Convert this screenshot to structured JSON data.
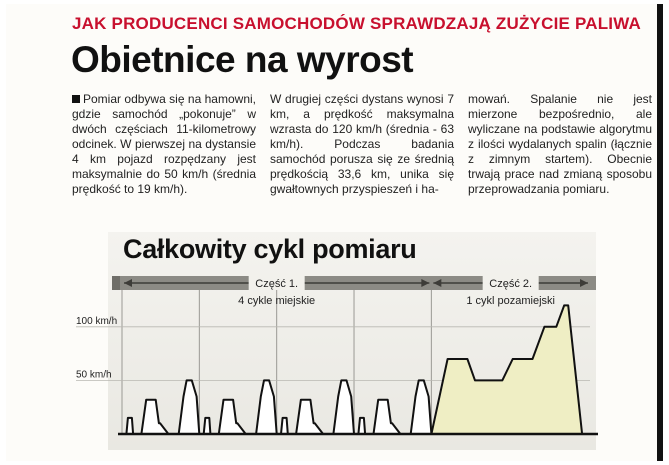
{
  "article": {
    "kicker": "JAK PRODUCENCI SAMOCHODÓW SPRAWDZAJĄ ZUŻYCIE PALIWA",
    "headline": "Obietnice na wyrost",
    "body_col1": "Pomiar odbywa się na hamowni, gdzie samochód „pokonuje” w dwóch częściach 11-kilometrowy odcinek. W pierwszej na dystansie 4 km pojazd rozpędzany jest maksymalnie do 50 km/h (średnia prędkość to 19 km/h).",
    "body_col2": "W drugiej części dystans wynosi 7 km, a prędkość maksymalna wzrasta do 120 km/h (średnia - 63 km/h). Podczas badania samochód porusza się ze średnią prędkością 33,6 km, unika się gwałtownych przyspieszeń i ha-",
    "body_col3": "mowań. Spalanie nie jest mierzone bezpośrednio, ale wyliczane na podstawie algorytmu z ilości wydalanych spalin (łącznie z zimnym startem). Obecnie trwają prace nad zmianą sposobu przeprowadzania pomiaru."
  },
  "chart_data": {
    "type": "area",
    "title": "Całkowity cykl pomiaru",
    "x_unit": "s",
    "y_unit": "km/h",
    "ytick_labels": [
      "100 km/h",
      "50 km/h"
    ],
    "ylim": [
      0,
      125
    ],
    "xlim": [
      0,
      1180
    ],
    "grid": "vertical lines separating the four urban cycles",
    "fill_colors": {
      "part1": "#ffffff",
      "part2": "#efeec4"
    },
    "parts": [
      {
        "label": "Część 1.",
        "sublabel": "4 cykle miejskie",
        "x_range": [
          0,
          780
        ]
      },
      {
        "label": "Część 2.",
        "sublabel": "1 cykl pozamiejski",
        "x_range": [
          780,
          1180
        ]
      }
    ],
    "series": [
      {
        "values_part1_one_cycle": [
          [
            0,
            0
          ],
          [
            11,
            0
          ],
          [
            15,
            15
          ],
          [
            23,
            15
          ],
          [
            25,
            15
          ],
          [
            28,
            0
          ],
          [
            49,
            0
          ],
          [
            61,
            32
          ],
          [
            85,
            32
          ],
          [
            93,
            10
          ],
          [
            96,
            10
          ],
          [
            117,
            0
          ],
          [
            143,
            0
          ],
          [
            155,
            35
          ],
          [
            163,
            50
          ],
          [
            176,
            50
          ],
          [
            188,
            35
          ],
          [
            201,
            35
          ],
          [
            209,
            0
          ],
          [
            195,
            0
          ]
        ],
        "cycle_period_s": 195,
        "cycles": 4,
        "values_part2": [
          [
            780,
            0
          ],
          [
            821,
            70
          ],
          [
            871,
            70
          ],
          [
            890,
            50
          ],
          [
            959,
            50
          ],
          [
            985,
            70
          ],
          [
            1035,
            70
          ],
          [
            1065,
            100
          ],
          [
            1095,
            100
          ],
          [
            1115,
            120
          ],
          [
            1125,
            120
          ],
          [
            1160,
            0
          ]
        ]
      }
    ]
  }
}
